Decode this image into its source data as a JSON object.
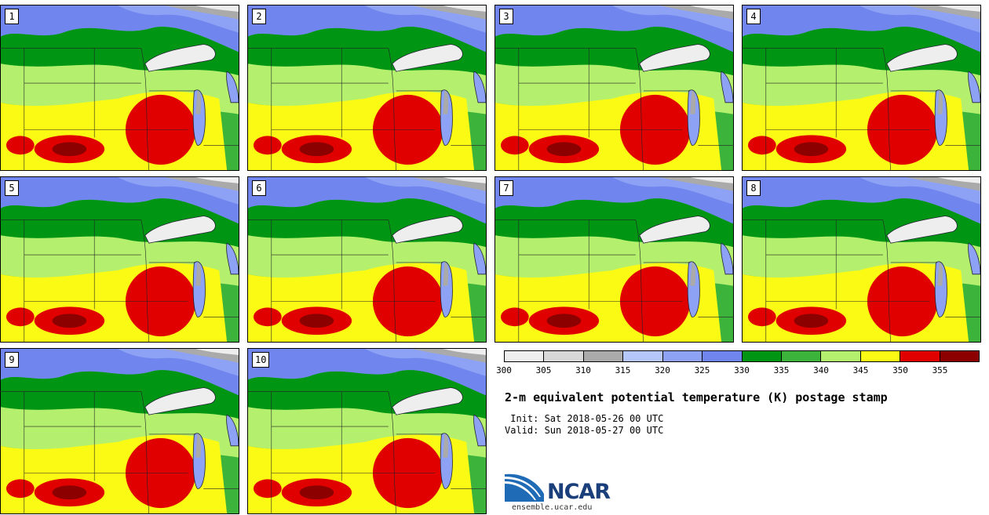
{
  "members": [
    "1",
    "2",
    "3",
    "4",
    "5",
    "6",
    "7",
    "8",
    "9",
    "10"
  ],
  "colorbar": {
    "colors": [
      "#eeeeee",
      "#d8d8d8",
      "#aaaaaa",
      "#b4c6fa",
      "#8da2f5",
      "#7085ee",
      "#009614",
      "#3cb43c",
      "#b4f06e",
      "#fafa14",
      "#e10000",
      "#8c0000"
    ],
    "tick_labels": [
      "300",
      "305",
      "310",
      "315",
      "320",
      "325",
      "330",
      "335",
      "340",
      "345",
      "350",
      "355"
    ]
  },
  "title": "2-m equivalent potential temperature (K) postage stamp",
  "init_text": " Init: Sat 2018-05-26 00 UTC",
  "valid_text": "Valid: Sun 2018-05-27 00 UTC",
  "logo": {
    "name": "NCAR",
    "url": "ensemble.ucar.edu"
  }
}
